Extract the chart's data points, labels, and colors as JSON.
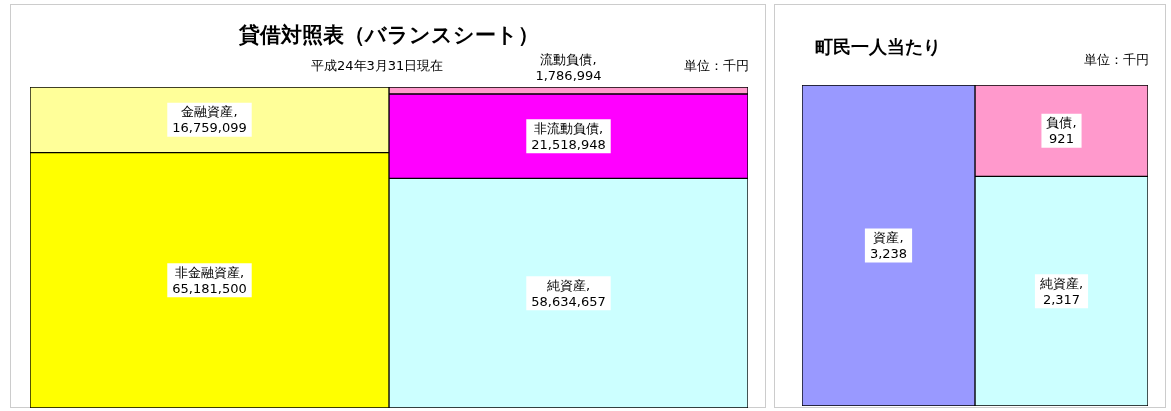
{
  "chart_data": [
    {
      "type": "bar",
      "title": "貸借対照表（バランスシート）",
      "subtitle": "平成24年3月31日現在",
      "annotations": [
        "単位：千円"
      ],
      "categories": [
        null,
        null
      ],
      "stacked": true,
      "data_labels": true,
      "legend": false,
      "tick_labels": false,
      "series": [
        {
          "name": "非金融資産,",
          "color": "#ffff00",
          "values": [
            65181500,
            null
          ],
          "value_labels": [
            "65,181,500",
            null
          ]
        },
        {
          "name": "金融資産,",
          "color": "#ffff99",
          "values": [
            16759099,
            null
          ],
          "value_labels": [
            "16,759,099",
            null
          ]
        },
        {
          "name": "純資産,",
          "color": "#ccffff",
          "values": [
            null,
            58634657
          ],
          "value_labels": [
            null,
            "58,634,657"
          ]
        },
        {
          "name": "非流動負債,",
          "color": "#ff00ff",
          "values": [
            null,
            21518948
          ],
          "value_labels": [
            null,
            "21,518,948"
          ]
        },
        {
          "name": "流動負債,",
          "color": "#ff99cc",
          "values": [
            null,
            1786994
          ],
          "value_labels": [
            null,
            "1,786,994"
          ]
        }
      ]
    },
    {
      "type": "bar",
      "title": "町民一人当たり",
      "annotations": [
        "単位：千円"
      ],
      "categories": [
        null,
        null
      ],
      "stacked": true,
      "data_labels": true,
      "legend": false,
      "tick_labels": false,
      "series": [
        {
          "name": "資産,",
          "color": "#9999ff",
          "values": [
            3238,
            null
          ],
          "value_labels": [
            "3,238",
            null
          ]
        },
        {
          "name": "純資産,",
          "color": "#ccffff",
          "values": [
            null,
            2317
          ],
          "value_labels": [
            null,
            "2,317"
          ]
        },
        {
          "name": "負債,",
          "color": "#ff99cc",
          "values": [
            null,
            921
          ],
          "value_labels": [
            null,
            "921"
          ]
        }
      ]
    }
  ]
}
